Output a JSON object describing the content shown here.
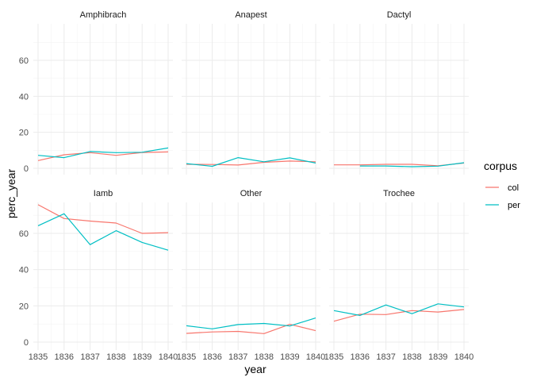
{
  "chart_data": {
    "type": "line",
    "xlabel": "year",
    "ylabel": "perc_year",
    "x": [
      1835,
      1836,
      1837,
      1838,
      1839,
      1840
    ],
    "xticks": [
      "1835",
      "1836",
      "1837",
      "1838",
      "1839",
      "1840"
    ],
    "yticks": [
      0,
      20,
      40,
      60
    ],
    "ylim": [
      -2,
      80
    ],
    "grid": true,
    "legend": {
      "title": "corpus",
      "placement": "right",
      "entries": [
        {
          "name": "col",
          "color": "#F8766D"
        },
        {
          "name": "per",
          "color": "#00BFC4"
        }
      ]
    },
    "panels": [
      {
        "title": "Amphibrach",
        "series": [
          {
            "name": "col",
            "x": [
              1835,
              1836,
              1837,
              1838,
              1839,
              1840
            ],
            "values": [
              4.3,
              7.5,
              8.7,
              7.2,
              8.8,
              9.1
            ]
          },
          {
            "name": "per",
            "x": [
              1835,
              1836,
              1837,
              1838,
              1839,
              1840
            ],
            "values": [
              7.2,
              5.9,
              9.3,
              8.7,
              8.9,
              11.3
            ]
          }
        ]
      },
      {
        "title": "Anapest",
        "series": [
          {
            "name": "col",
            "x": [
              1835,
              1836,
              1837,
              1838,
              1839,
              1840
            ],
            "values": [
              2.2,
              2.1,
              1.8,
              3.3,
              4.0,
              3.6
            ]
          },
          {
            "name": "per",
            "x": [
              1835,
              1836,
              1837,
              1838,
              1839,
              1840
            ],
            "values": [
              2.6,
              1.1,
              5.9,
              3.6,
              5.8,
              2.9
            ]
          }
        ]
      },
      {
        "title": "Dactyl",
        "series": [
          {
            "name": "col",
            "x": [
              1835,
              1836,
              1837,
              1838,
              1839,
              1840
            ],
            "values": [
              1.9,
              1.9,
              2.2,
              2.2,
              1.4,
              2.9
            ]
          },
          {
            "name": "per",
            "x": [
              1836,
              1837,
              1838,
              1839,
              1840
            ],
            "values": [
              1.3,
              1.3,
              0.9,
              1.2,
              3.1
            ]
          }
        ]
      },
      {
        "title": "Iamb",
        "series": [
          {
            "name": "col",
            "x": [
              1835,
              1836,
              1837,
              1838,
              1839,
              1840
            ],
            "values": [
              75.8,
              68.2,
              66.8,
              65.7,
              60.0,
              60.4
            ]
          },
          {
            "name": "per",
            "x": [
              1835,
              1836,
              1837,
              1838,
              1839,
              1840
            ],
            "values": [
              64.2,
              70.8,
              53.8,
              61.5,
              55.0,
              50.7
            ]
          }
        ]
      },
      {
        "title": "Other",
        "series": [
          {
            "name": "col",
            "x": [
              1835,
              1836,
              1837,
              1838,
              1839,
              1840
            ],
            "values": [
              4.8,
              5.6,
              5.9,
              4.7,
              9.8,
              6.3
            ]
          },
          {
            "name": "per",
            "x": [
              1835,
              1836,
              1837,
              1838,
              1839,
              1840
            ],
            "values": [
              9.0,
              7.3,
              9.7,
              10.3,
              8.9,
              13.3
            ]
          }
        ]
      },
      {
        "title": "Trochee",
        "series": [
          {
            "name": "col",
            "x": [
              1835,
              1836,
              1837,
              1838,
              1839,
              1840
            ],
            "values": [
              11.5,
              15.4,
              15.2,
              17.4,
              16.6,
              18.0
            ]
          },
          {
            "name": "per",
            "x": [
              1835,
              1836,
              1837,
              1838,
              1839,
              1840
            ],
            "values": [
              17.4,
              14.7,
              20.5,
              15.7,
              21.1,
              19.4
            ]
          }
        ]
      }
    ]
  }
}
